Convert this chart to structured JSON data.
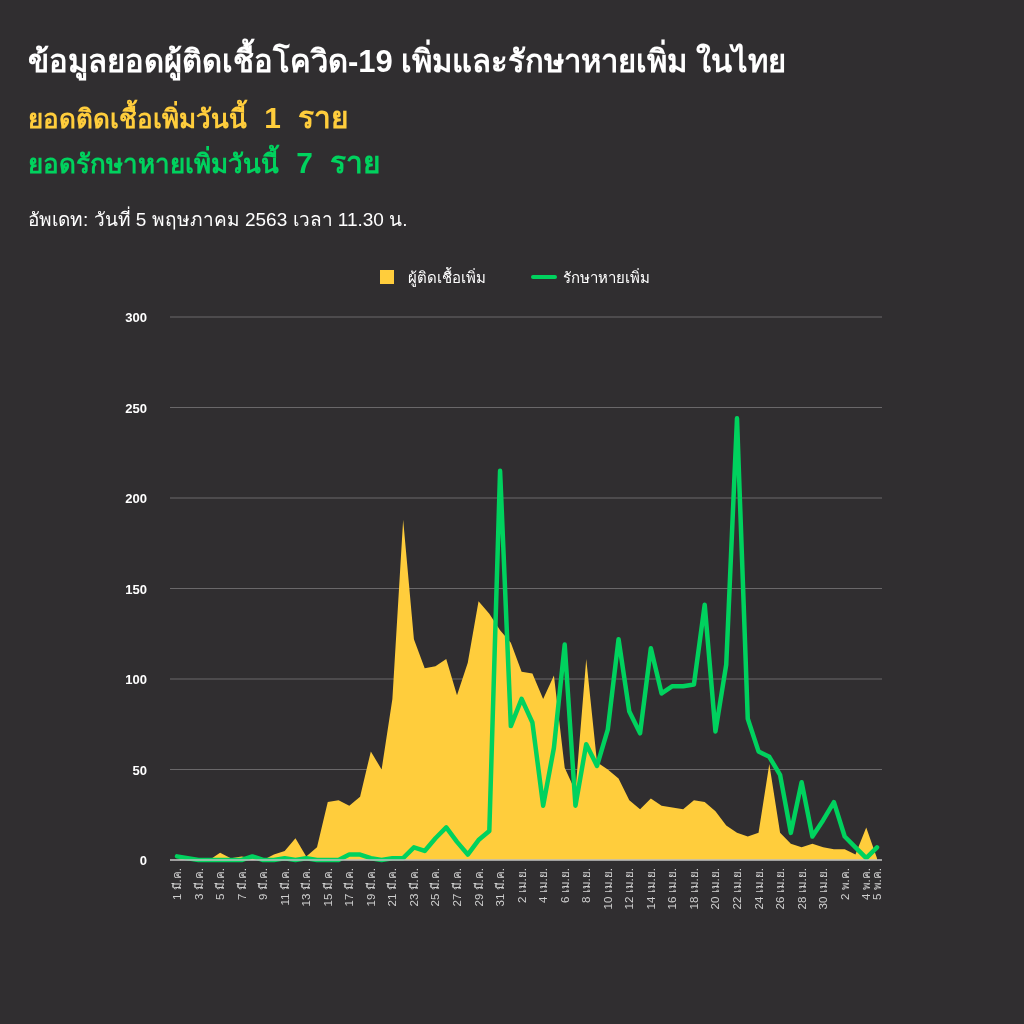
{
  "chart_data": {
    "type": "area",
    "title": "ข้อมูลยอดผู้ติดเชื้อโควิด-19 เพิ่มและรักษาหายเพิ่ม ในไทย",
    "subtitle": "อัพเดท: วันที่ 5 พฤษภาคม 2563 เวลา 11.30 น.",
    "annotations": [
      "ยอดติดเชื้อเพิ่มวันนี้ **1** **ราย**",
      "ยอดรักษาหายเพิ่มวันนี้ **7** **ราย**"
    ],
    "categories": [
      "1 มี.ค.",
      null,
      "3 มี.ค.",
      null,
      "5 มี.ค.",
      null,
      "7 มี.ค.",
      null,
      "9 มี.ค.",
      null,
      "11 มี.ค.",
      null,
      "13 มี.ค.",
      null,
      "15 มี.ค.",
      null,
      "17 มี.ค.",
      null,
      "19 มี.ค.",
      null,
      "21 มี.ค.",
      null,
      "23 มี.ค.",
      null,
      "25 มี.ค.",
      null,
      "27 มี.ค.",
      null,
      "29 มี.ค.",
      null,
      "31 มี.ค.",
      null,
      "2 เม.ย.",
      null,
      "4 เม.ย.",
      null,
      "6 เม.ย.",
      null,
      "8 เม.ย.",
      null,
      "10 เม.ย.",
      null,
      "12 เม.ย.",
      null,
      "14 เม.ย.",
      null,
      "16 เม.ย.",
      null,
      "18 เม.ย.",
      null,
      "20 เม.ย.",
      null,
      "22 เม.ย.",
      null,
      "24 เม.ย.",
      null,
      "26 เม.ย.",
      null,
      "28 เม.ย.",
      null,
      "30 เม.ย.",
      null,
      "2 พ.ค.",
      null,
      "4 พ.ค.",
      "5 พ.ค."
    ],
    "series": [
      {
        "name": "ผู้ติดเชื้อเพิ่ม",
        "color": "#ffcd3c",
        "values": [
          0,
          1,
          0,
          0,
          4,
          1,
          2,
          1,
          0,
          3,
          5,
          12,
          2,
          7,
          32,
          33,
          30,
          35,
          60,
          50,
          89,
          188,
          122,
          106,
          107,
          111,
          91,
          109,
          143,
          136,
          127,
          120,
          104,
          103,
          89,
          102,
          51,
          38,
          111,
          54,
          50,
          45,
          33,
          28,
          34,
          30,
          29,
          28,
          33,
          32,
          27,
          19,
          15,
          13,
          15,
          53,
          15,
          9,
          7,
          9,
          7,
          6,
          6,
          3,
          18,
          1
        ]
      },
      {
        "name": "รักษาหายเพิ่ม",
        "type": "line",
        "color": "#00d25e",
        "values": [
          2,
          1,
          0,
          0,
          0,
          0,
          0,
          2,
          0,
          0,
          1,
          0,
          1,
          0,
          0,
          0,
          3,
          3,
          1,
          0,
          1,
          1,
          7,
          5,
          12,
          18,
          10,
          3,
          11,
          16,
          215,
          74,
          89,
          76,
          30,
          62,
          119,
          30,
          64,
          52,
          72,
          122,
          82,
          70,
          117,
          92,
          96,
          96,
          97,
          141,
          71,
          108,
          244,
          78,
          60,
          57,
          47,
          15,
          43,
          13,
          22,
          32,
          13,
          7,
          1,
          7
        ]
      }
    ],
    "ylim": [
      0,
      300
    ],
    "yticks": [
      0,
      50,
      100,
      150,
      200,
      250,
      300
    ],
    "grid": "y",
    "legend": "top",
    "marker": "none",
    "line_style": "solid"
  }
}
